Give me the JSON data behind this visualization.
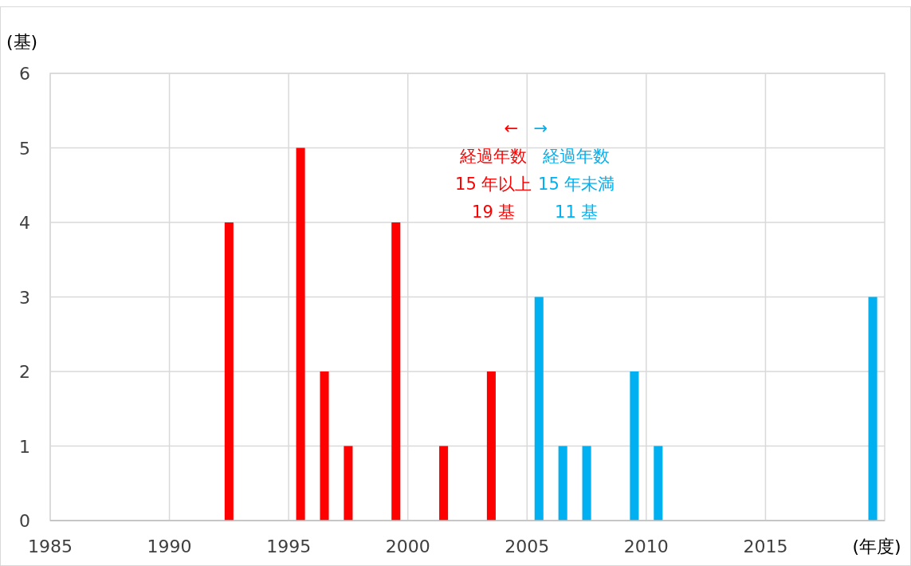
{
  "chart_data": {
    "type": "bar",
    "xlabel": "(年度)",
    "ylabel": "(基)",
    "xlim": [
      1985,
      2020
    ],
    "xticks": [
      1985,
      1990,
      1995,
      2000,
      2005,
      2010,
      2015
    ],
    "ylim": [
      0,
      6
    ],
    "yticks": [
      0,
      1,
      2,
      3,
      4,
      5,
      6
    ],
    "grid": true,
    "series": [
      {
        "color": "#ff0000",
        "x": [
          1992.5,
          1995.5,
          1996.5,
          1997.5,
          1999.5,
          2001.5,
          2003.5
        ],
        "values": [
          4,
          5,
          2,
          1,
          4,
          1,
          2
        ]
      },
      {
        "color": "#00b0f0",
        "x": [
          2005.5,
          2006.5,
          2007.5,
          2009.5,
          2010.5,
          2019.5
        ],
        "values": [
          3,
          1,
          1,
          2,
          1,
          3
        ]
      }
    ],
    "annotations": [
      "←\n経過年数\n15 年以上\n19 基",
      "→\n経過年数\n15 年未満\n11 基"
    ]
  }
}
